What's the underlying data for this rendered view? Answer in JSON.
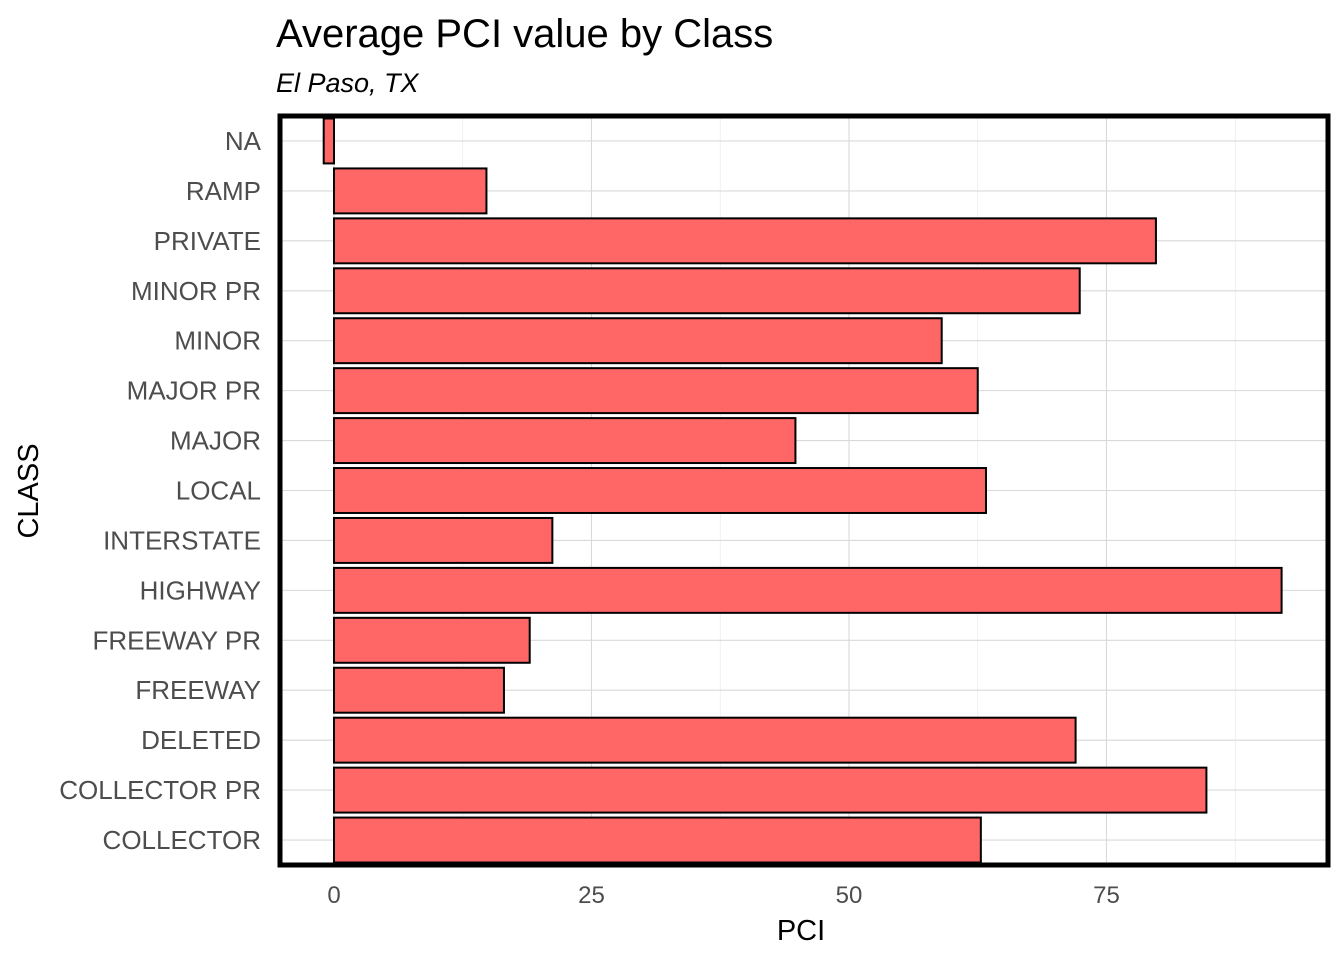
{
  "chart_data": {
    "type": "bar",
    "orientation": "horizontal",
    "title": "Average PCI value by Class",
    "subtitle": "El Paso, TX",
    "xlabel": "PCI",
    "ylabel": "CLASS",
    "categories": [
      "COLLECTOR",
      "COLLECTOR PR",
      "DELETED",
      "FREEWAY",
      "FREEWAY PR",
      "HIGHWAY",
      "INTERSTATE",
      "LOCAL",
      "MAJOR",
      "MAJOR PR",
      "MINOR",
      "MINOR PR",
      "PRIVATE",
      "RAMP",
      "NA"
    ],
    "values": [
      62.8,
      84.7,
      72.0,
      16.5,
      19.0,
      92.0,
      21.2,
      63.3,
      44.8,
      62.5,
      59.0,
      72.4,
      79.8,
      14.8,
      -1.0
    ],
    "xlim": [
      -5.5,
      96.5
    ],
    "xticks": [
      0,
      25,
      50,
      75
    ],
    "xtick_labels": [
      "0",
      "25",
      "50",
      "75"
    ],
    "bar_color": "#ff6666",
    "bar_outline": "#000000",
    "grid": true,
    "legend": "none"
  }
}
